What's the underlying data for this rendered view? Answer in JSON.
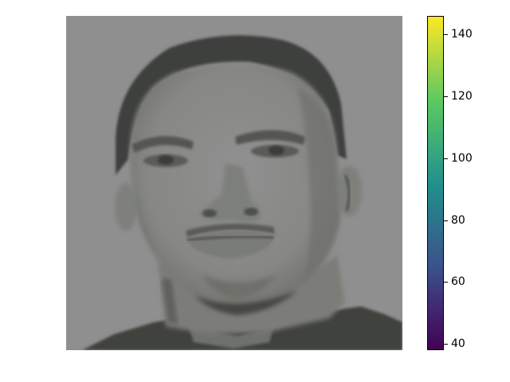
{
  "image": {
    "subject": "grayscale-face-photo",
    "background_color": "#8f8f8f",
    "skin_color": "#8b8c88",
    "hair_color": "#3e403c",
    "shirt_color": "#3f433d"
  },
  "colorbar": {
    "colormap": "viridis",
    "range": [
      38,
      146
    ],
    "ticks": [
      {
        "value": 140,
        "label": "140"
      },
      {
        "value": 120,
        "label": "120"
      },
      {
        "value": 100,
        "label": "100"
      },
      {
        "value": 80,
        "label": "80"
      },
      {
        "value": 60,
        "label": "60"
      },
      {
        "value": 40,
        "label": "40"
      }
    ],
    "stops": [
      "#440154",
      "#3b528b",
      "#21918c",
      "#5ec962",
      "#fde725"
    ]
  }
}
